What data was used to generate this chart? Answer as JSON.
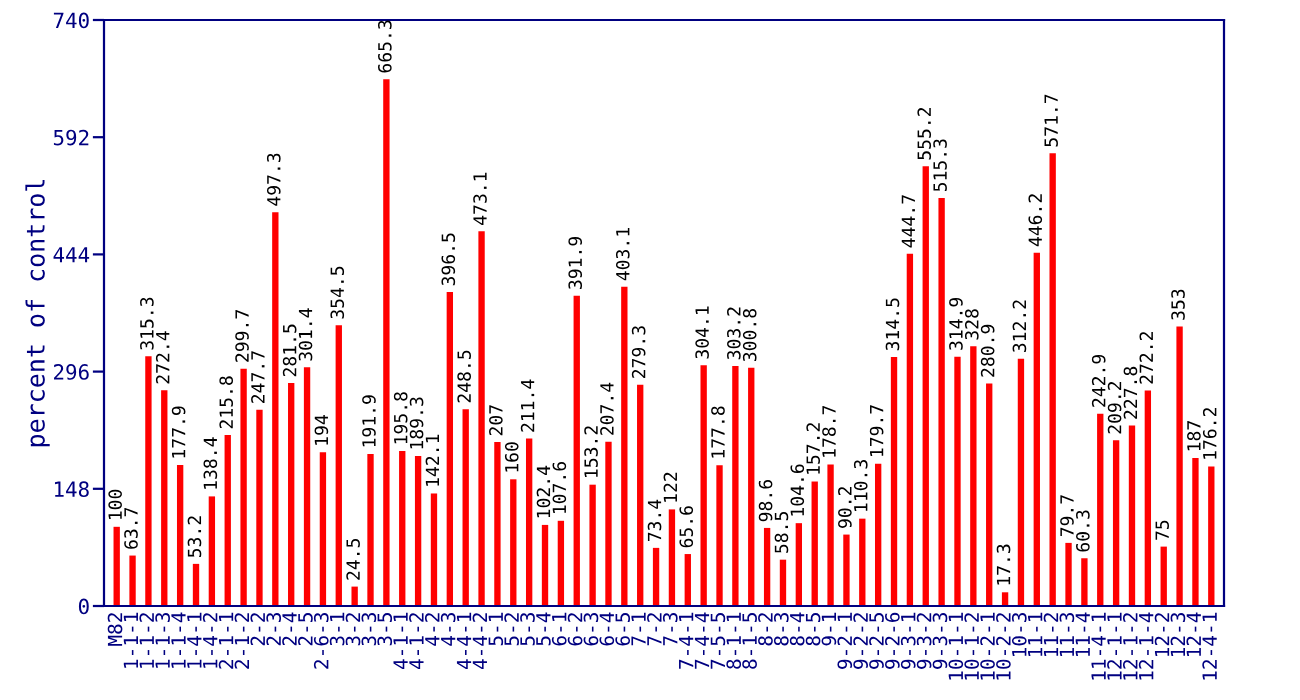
{
  "chart_data": {
    "type": "bar",
    "ylabel": "percent of control",
    "categories": [
      "M82",
      "1-1-1",
      "1-1-2",
      "1-1-3",
      "1-1-4",
      "1-4-1",
      "1-4-2",
      "2-1-1",
      "2-1-2",
      "2-2",
      "2-3",
      "2-4",
      "2-5",
      "2-6-3",
      "3-1",
      "3-2",
      "3-3",
      "3-5",
      "4-1-1",
      "4-1-2",
      "4-2",
      "4-3",
      "4-4-1",
      "4-4-2",
      "5-1",
      "5-2",
      "5-3",
      "5-4",
      "6-1",
      "6-2",
      "6-3",
      "6-4",
      "6-5",
      "7-1",
      "7-2",
      "7-3",
      "7-4-1",
      "7-4-4",
      "7-5-5",
      "8-1-1",
      "8-1-5",
      "8-2",
      "8-3",
      "8-4",
      "8-5",
      "9-1",
      "9-2-1",
      "9-2-2",
      "9-2-5",
      "9-2-6",
      "9-3-1",
      "9-3-2",
      "9-3-3",
      "10-1-1",
      "10-1-2",
      "10-2-1",
      "10-2-2",
      "10-3",
      "11-1",
      "11-2",
      "11-3",
      "11-4",
      "11-4-1",
      "12-1-1",
      "12-1-2",
      "12-1-4",
      "12-2",
      "12-3",
      "12-4",
      "12-4-1"
    ],
    "values": [
      100,
      63.7,
      315.3,
      272.4,
      177.9,
      53.2,
      138.4,
      215.8,
      299.7,
      247.7,
      497.3,
      281.5,
      301.4,
      194,
      354.5,
      24.5,
      191.9,
      665.3,
      195.8,
      189.3,
      142.1,
      396.5,
      248.5,
      473.1,
      207,
      160,
      211.4,
      102.4,
      107.6,
      391.9,
      153.2,
      207.4,
      403.1,
      279.3,
      73.4,
      122,
      65.6,
      304.1,
      177.8,
      303.2,
      300.8,
      98.6,
      58.5,
      104.6,
      157.2,
      178.7,
      90.2,
      110.3,
      179.7,
      314.5,
      444.7,
      555.2,
      515.3,
      314.9,
      328,
      280.9,
      17.3,
      312.2,
      446.2,
      571.7,
      79.7,
      60.3,
      242.9,
      209.2,
      227.8,
      272.2,
      75,
      353,
      187,
      176.2
    ],
    "color": "#ff0000",
    "ylim": [
      0,
      740
    ],
    "yticks": [
      0,
      148,
      296,
      444,
      592,
      740
    ],
    "data_labels": true,
    "grid": false,
    "legend": false
  }
}
